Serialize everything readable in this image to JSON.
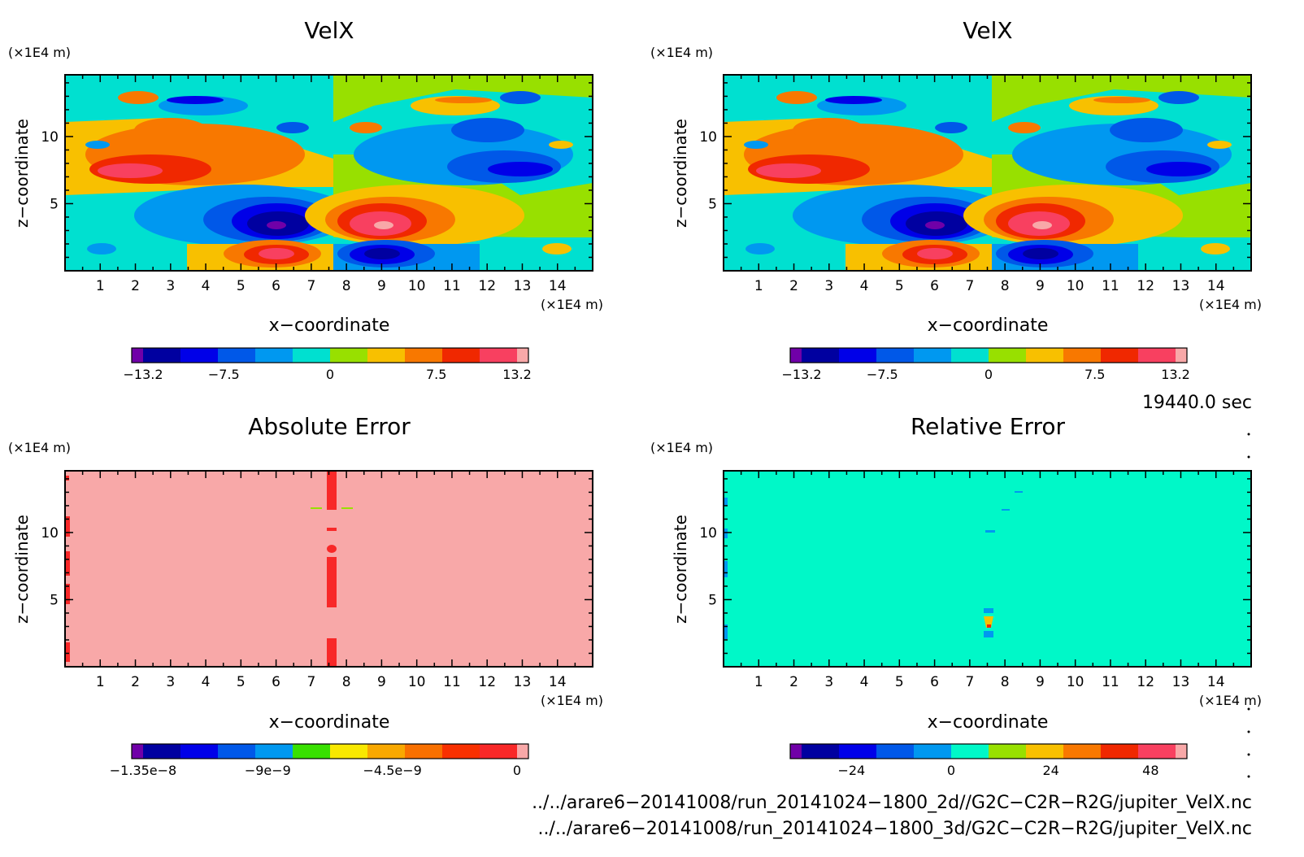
{
  "chart_data": [
    {
      "type": "heatmap",
      "title": "VelX",
      "xlabel": "x−coordinate",
      "ylabel": "z−coordinate",
      "x_unit": "(×1E4 m)",
      "y_unit": "(×1E4 m)",
      "xlim": [
        0,
        15
      ],
      "ylim": [
        0,
        14.6
      ],
      "x_ticks": [
        "1",
        "2",
        "3",
        "4",
        "5",
        "6",
        "7",
        "8",
        "9",
        "10",
        "11",
        "12",
        "13",
        "14"
      ],
      "y_ticks": [
        "5",
        "10"
      ],
      "colorbar": {
        "colors": [
          "#7000a8",
          "#0000a0",
          "#0000e8",
          "#0058e8",
          "#0098f0",
          "#00e0d0",
          "#98e000",
          "#f8c000",
          "#f87800",
          "#f02800",
          "#f84060",
          "#f8a8a8"
        ],
        "tick_labels": [
          "−13.2",
          "−7.5",
          "0",
          "7.5",
          "13.2"
        ],
        "range": [
          -13.2,
          13.2
        ]
      },
      "field": "antisymmetric_vortex_pattern"
    },
    {
      "type": "heatmap",
      "title": "VelX",
      "xlabel": "x−coordinate",
      "ylabel": "z−coordinate",
      "x_unit": "(×1E4 m)",
      "y_unit": "(×1E4 m)",
      "xlim": [
        0,
        15
      ],
      "ylim": [
        0,
        14.6
      ],
      "x_ticks": [
        "1",
        "2",
        "3",
        "4",
        "5",
        "6",
        "7",
        "8",
        "9",
        "10",
        "11",
        "12",
        "13",
        "14"
      ],
      "y_ticks": [
        "5",
        "10"
      ],
      "colorbar": {
        "colors": [
          "#7000a8",
          "#0000a0",
          "#0000e8",
          "#0058e8",
          "#0098f0",
          "#00e0d0",
          "#98e000",
          "#f8c000",
          "#f87800",
          "#f02800",
          "#f84060",
          "#f8a8a8"
        ],
        "tick_labels": [
          "−13.2",
          "−7.5",
          "0",
          "7.5",
          "13.2"
        ],
        "range": [
          -13.2,
          13.2
        ]
      },
      "field": "antisymmetric_vortex_pattern"
    },
    {
      "type": "heatmap",
      "title": "Absolute Error",
      "xlabel": "x−coordinate",
      "ylabel": "z−coordinate",
      "x_unit": "(×1E4 m)",
      "y_unit": "(×1E4 m)",
      "xlim": [
        0,
        15
      ],
      "ylim": [
        0,
        14.6
      ],
      "x_ticks": [
        "1",
        "2",
        "3",
        "4",
        "5",
        "6",
        "7",
        "8",
        "9",
        "10",
        "11",
        "12",
        "13",
        "14"
      ],
      "y_ticks": [
        "5",
        "10"
      ],
      "background_color": "#f8a8a8",
      "colorbar": {
        "colors": [
          "#7000a8",
          "#0000a0",
          "#0000e8",
          "#0058e8",
          "#0098f0",
          "#38e000",
          "#f8e800",
          "#f8a800",
          "#f87000",
          "#f83000",
          "#f82828",
          "#f8a8a8"
        ],
        "tick_labels": [
          "−1.35e−8",
          "−9e−9",
          "−4.5e−9",
          "0"
        ],
        "range": [
          -1.35e-08,
          0
        ]
      }
    },
    {
      "type": "heatmap",
      "title": "Relative Error",
      "xlabel": "x−coordinate",
      "ylabel": "z−coordinate",
      "x_unit": "(×1E4 m)",
      "y_unit": "(×1E4 m)",
      "xlim": [
        0,
        15
      ],
      "ylim": [
        0,
        14.6
      ],
      "x_ticks": [
        "1",
        "2",
        "3",
        "4",
        "5",
        "6",
        "7",
        "8",
        "9",
        "10",
        "11",
        "12",
        "13",
        "14"
      ],
      "y_ticks": [
        "5",
        "10"
      ],
      "background_color": "#00f8c8",
      "colorbar": {
        "colors": [
          "#7000a8",
          "#0000a0",
          "#0000e8",
          "#0058e8",
          "#0098f0",
          "#00f8c8",
          "#98e000",
          "#f8c000",
          "#f87800",
          "#f02800",
          "#f84060",
          "#f8a8a8"
        ],
        "tick_labels": [
          "−24",
          "0",
          "24",
          "48"
        ],
        "range": [
          -36,
          54
        ]
      }
    }
  ],
  "time_label": "19440.0 sec",
  "file_paths": [
    "../../arare6−20141008/run_20141024−1800_2d//G2C−C2R−R2G/jupiter_VelX.nc",
    "../../arare6−20141008/run_20141024−1800_3d/G2C−C2R−R2G/jupiter_VelX.nc"
  ]
}
